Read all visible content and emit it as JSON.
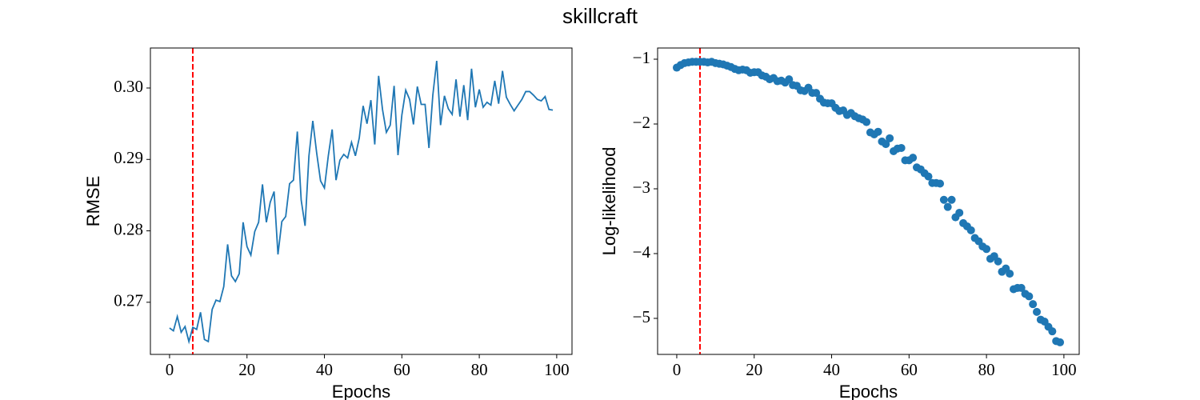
{
  "title": "skillcraft",
  "chart_data": [
    {
      "type": "line",
      "xlabel": "Epochs",
      "ylabel": "RMSE",
      "color": "#1f77b4",
      "vline": 6,
      "vline_color": "#ff0000",
      "xlim": [
        -4.95,
        103.95
      ],
      "ylim": [
        0.2627,
        0.3056
      ],
      "xticks": [
        0,
        20,
        40,
        60,
        80,
        100
      ],
      "yticks": [
        0.27,
        0.28,
        0.29,
        {
          "value": 0.3,
          "label": "0.30"
        }
      ],
      "x": [
        0,
        1,
        2,
        3,
        4,
        5,
        6,
        7,
        8,
        9,
        10,
        11,
        12,
        13,
        14,
        15,
        16,
        17,
        18,
        19,
        20,
        21,
        22,
        23,
        24,
        25,
        26,
        27,
        28,
        29,
        30,
        31,
        32,
        33,
        34,
        35,
        36,
        37,
        38,
        39,
        40,
        41,
        42,
        43,
        44,
        45,
        46,
        47,
        48,
        49,
        50,
        51,
        52,
        53,
        54,
        55,
        56,
        57,
        58,
        59,
        60,
        61,
        62,
        63,
        64,
        65,
        66,
        67,
        68,
        69,
        70,
        71,
        72,
        73,
        74,
        75,
        76,
        77,
        78,
        79,
        80,
        81,
        82,
        83,
        84,
        85,
        86,
        87,
        88,
        89,
        90,
        91,
        92,
        93,
        94,
        95,
        96,
        97,
        98,
        99
      ],
      "values": [
        0.2664,
        0.266,
        0.268,
        0.2658,
        0.2666,
        0.2645,
        0.2665,
        0.2662,
        0.2686,
        0.2648,
        0.2645,
        0.269,
        0.2703,
        0.2701,
        0.2722,
        0.2781,
        0.2737,
        0.2729,
        0.274,
        0.2812,
        0.2778,
        0.2766,
        0.2799,
        0.2812,
        0.2865,
        0.2812,
        0.284,
        0.2855,
        0.2767,
        0.2813,
        0.282,
        0.2866,
        0.2871,
        0.2939,
        0.2843,
        0.2807,
        0.2905,
        0.2954,
        0.2909,
        0.287,
        0.286,
        0.2905,
        0.2942,
        0.2871,
        0.2899,
        0.2907,
        0.2902,
        0.2924,
        0.2905,
        0.293,
        0.2975,
        0.295,
        0.2983,
        0.2921,
        0.3017,
        0.297,
        0.2938,
        0.2948,
        0.3003,
        0.2906,
        0.2962,
        0.2997,
        0.2984,
        0.2949,
        0.3002,
        0.2977,
        0.2977,
        0.2916,
        0.299,
        0.3038,
        0.2948,
        0.2989,
        0.2971,
        0.2963,
        0.3012,
        0.296,
        0.3004,
        0.2955,
        0.3027,
        0.2973,
        0.2998,
        0.2973,
        0.298,
        0.2976,
        0.301,
        0.2978,
        0.3024,
        0.2987,
        0.2977,
        0.2968,
        0.2976,
        0.2984,
        0.2995,
        0.2995,
        0.299,
        0.2984,
        0.2982,
        0.2988,
        0.297,
        0.2969
      ]
    },
    {
      "type": "scatter",
      "xlabel": "Epochs",
      "ylabel": "Log-likelihood",
      "color": "#1f77b4",
      "vline": 6,
      "vline_color": "#ff0000",
      "xlim": [
        -4.95,
        103.95
      ],
      "ylim": [
        -5.556,
        -0.827
      ],
      "xticks": [
        0,
        20,
        40,
        60,
        80,
        100
      ],
      "yticks": [
        {
          "value": -5,
          "label": "−5"
        },
        {
          "value": -4,
          "label": "−4"
        },
        {
          "value": -3,
          "label": "−3"
        },
        {
          "value": -2,
          "label": "−2"
        },
        {
          "value": -1,
          "label": "−1"
        }
      ],
      "x": [
        0,
        1,
        2,
        3,
        4,
        5,
        6,
        7,
        8,
        9,
        10,
        11,
        12,
        13,
        14,
        15,
        16,
        17,
        18,
        19,
        20,
        21,
        22,
        23,
        24,
        25,
        26,
        27,
        28,
        29,
        30,
        31,
        32,
        33,
        34,
        35,
        36,
        37,
        38,
        39,
        40,
        41,
        42,
        43,
        44,
        45,
        46,
        47,
        48,
        49,
        50,
        51,
        52,
        53,
        54,
        55,
        56,
        57,
        58,
        59,
        60,
        61,
        62,
        63,
        64,
        65,
        66,
        67,
        68,
        69,
        70,
        71,
        72,
        73,
        74,
        75,
        76,
        77,
        78,
        79,
        80,
        81,
        82,
        83,
        84,
        85,
        86,
        87,
        88,
        89,
        90,
        91,
        92,
        93,
        94,
        95,
        96,
        97,
        98,
        99
      ],
      "values": [
        -1.13,
        -1.09,
        -1.06,
        -1.05,
        -1.04,
        -1.04,
        -1.04,
        -1.04,
        -1.05,
        -1.04,
        -1.06,
        -1.07,
        -1.08,
        -1.1,
        -1.12,
        -1.15,
        -1.17,
        -1.16,
        -1.17,
        -1.21,
        -1.2,
        -1.2,
        -1.25,
        -1.27,
        -1.31,
        -1.29,
        -1.34,
        -1.33,
        -1.36,
        -1.31,
        -1.4,
        -1.41,
        -1.48,
        -1.49,
        -1.44,
        -1.52,
        -1.52,
        -1.61,
        -1.67,
        -1.68,
        -1.68,
        -1.75,
        -1.8,
        -1.79,
        -1.86,
        -1.83,
        -1.88,
        -1.91,
        -1.93,
        -1.97,
        -2.13,
        -2.16,
        -2.12,
        -2.27,
        -2.31,
        -2.22,
        -2.42,
        -2.38,
        -2.37,
        -2.56,
        -2.56,
        -2.52,
        -2.67,
        -2.7,
        -2.76,
        -2.81,
        -2.91,
        -2.91,
        -2.92,
        -3.17,
        -3.28,
        -3.17,
        -3.44,
        -3.37,
        -3.53,
        -3.58,
        -3.64,
        -3.76,
        -3.81,
        -3.89,
        -3.93,
        -4.08,
        -4.04,
        -4.12,
        -4.28,
        -4.23,
        -4.31,
        -4.55,
        -4.53,
        -4.53,
        -4.62,
        -4.66,
        -4.78,
        -4.9,
        -5.02,
        -5.05,
        -5.13,
        -5.2,
        -5.35,
        -5.37
      ]
    }
  ]
}
